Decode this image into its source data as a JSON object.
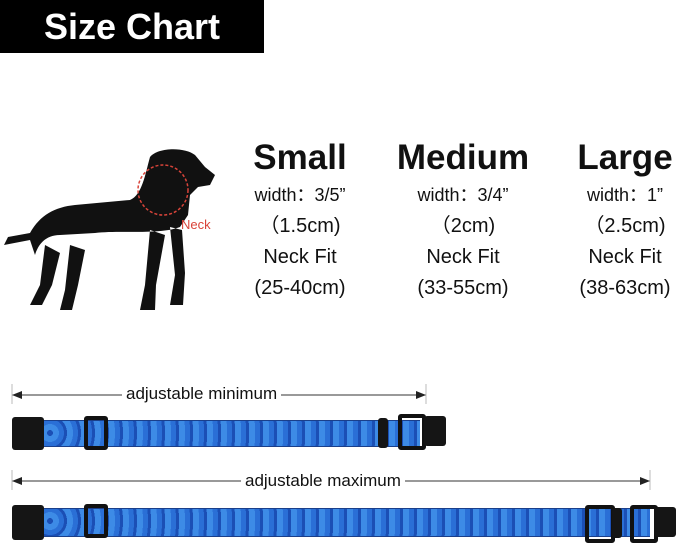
{
  "title": "Size Chart",
  "neck_label": "Neck",
  "sizes": [
    {
      "name": "Small",
      "width": "width：3/5”",
      "width_cm": "（1.5cm)",
      "fit_label": "Neck Fit",
      "fit_range": "(25-40cm)"
    },
    {
      "name": "Medium",
      "width": "width：3/4”",
      "width_cm": "（2cm)",
      "fit_label": "Neck Fit",
      "fit_range": "(33-55cm)"
    },
    {
      "name": "Large",
      "width": "width：1”",
      "width_cm": "（2.5cm)",
      "fit_label": "Neck Fit",
      "fit_range": "(38-63cm)"
    }
  ],
  "collars": {
    "min_label": "adjustable minimum",
    "max_label": "adjustable maximum"
  },
  "colors": {
    "collar_blue": "#3d8be6",
    "neck_marker": "#d9443a"
  }
}
